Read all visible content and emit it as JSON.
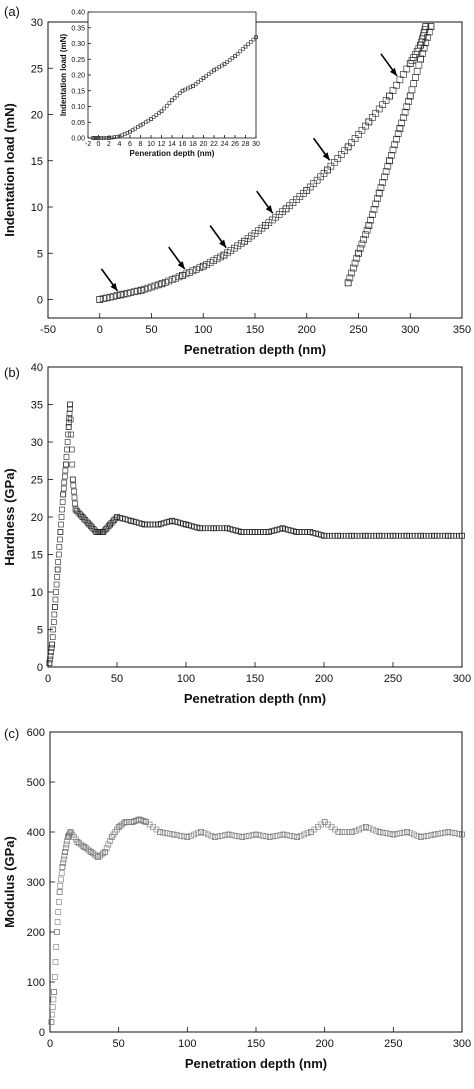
{
  "chart_data": [
    {
      "panel": "(a)",
      "type": "scatter",
      "xlabel": "Penetration depth (nm)",
      "ylabel": "Indentation load (mN)",
      "xlim": [
        -50,
        350
      ],
      "ylim": [
        -2,
        30
      ],
      "x_ticks": [
        -50,
        0,
        50,
        100,
        150,
        200,
        250,
        300,
        350
      ],
      "y_ticks": [
        0,
        5,
        10,
        15,
        20,
        25,
        30
      ],
      "marker": "open-square",
      "series": [
        {
          "segment": "loading",
          "x": [
            0,
            20,
            40,
            60,
            80,
            100,
            120,
            140,
            160,
            180,
            200,
            220,
            240,
            260,
            280,
            300,
            310,
            315
          ],
          "y": [
            0,
            0.5,
            1.0,
            1.7,
            2.6,
            3.6,
            4.8,
            6.3,
            8.0,
            9.8,
            11.8,
            14.0,
            16.5,
            19.2,
            22.0,
            25.5,
            27.5,
            29.5
          ]
        },
        {
          "segment": "unloading",
          "x": [
            320,
            310,
            300,
            290,
            280,
            270,
            260,
            250,
            240
          ],
          "y": [
            29.5,
            26.0,
            22.0,
            18.5,
            15.0,
            11.5,
            8.0,
            5.0,
            1.8
          ]
        }
      ],
      "arrows_at_x": [
        20,
        85,
        125,
        170,
        225,
        290
      ],
      "inset": {
        "xlabel": "Peneration depth (nm)",
        "ylabel": "Indentation load (mN)",
        "xlim": [
          -2,
          30
        ],
        "ylim": [
          0,
          0.4
        ],
        "x_ticks": [
          -2,
          0,
          2,
          4,
          6,
          8,
          10,
          12,
          14,
          16,
          18,
          20,
          22,
          24,
          26,
          28,
          30
        ],
        "y_ticks": [
          "0.00",
          "0.05",
          "0.10",
          "0.15",
          "0.20",
          "0.25",
          "0.30",
          "0.35",
          "0.40"
        ],
        "x": [
          -1,
          0,
          2,
          4,
          6,
          8,
          10,
          12,
          14,
          16,
          18,
          20,
          22,
          24,
          26,
          28,
          30
        ],
        "y": [
          0.0,
          0.0,
          0.0,
          0.005,
          0.02,
          0.04,
          0.06,
          0.085,
          0.12,
          0.15,
          0.165,
          0.19,
          0.215,
          0.235,
          0.26,
          0.29,
          0.32
        ]
      }
    },
    {
      "panel": "(b)",
      "type": "scatter",
      "xlabel": "Penetration depth (nm)",
      "ylabel": "Hardness (GPa)",
      "xlim": [
        0,
        300
      ],
      "ylim": [
        0,
        40
      ],
      "x_ticks": [
        0,
        50,
        100,
        150,
        200,
        250,
        300
      ],
      "y_ticks": [
        0,
        5,
        10,
        15,
        20,
        25,
        30,
        35,
        40
      ],
      "marker": "open-square",
      "x": [
        1,
        3,
        5,
        7,
        9,
        11,
        13,
        15,
        16,
        18,
        20,
        25,
        30,
        35,
        40,
        45,
        50,
        60,
        70,
        80,
        90,
        100,
        110,
        120,
        130,
        140,
        150,
        160,
        170,
        180,
        190,
        200,
        210,
        220,
        230,
        240,
        250,
        260,
        270,
        280,
        290,
        300
      ],
      "y": [
        0.5,
        3,
        8,
        13,
        18,
        23,
        27,
        32,
        35,
        25,
        21,
        20,
        19,
        18,
        18,
        19,
        20,
        19.5,
        19,
        19,
        19.5,
        19,
        18.5,
        18.5,
        18.5,
        18,
        18,
        18,
        18.5,
        18,
        18,
        17.5,
        17.5,
        17.5,
        17.5,
        17.5,
        17.5,
        17.5,
        17.5,
        17.5,
        17.5,
        17.5
      ]
    },
    {
      "panel": "(c)",
      "type": "scatter",
      "xlabel": "Penetration depth (nm)",
      "ylabel": "Modulus (GPa)",
      "xlim": [
        0,
        300
      ],
      "ylim": [
        0,
        600
      ],
      "x_ticks": [
        0,
        50,
        100,
        150,
        200,
        250,
        300
      ],
      "y_ticks": [
        0,
        100,
        200,
        300,
        400,
        500,
        600
      ],
      "marker": "open-square",
      "x": [
        1,
        3,
        5,
        7,
        9,
        11,
        13,
        15,
        20,
        25,
        30,
        35,
        40,
        45,
        50,
        55,
        60,
        65,
        70,
        80,
        90,
        100,
        110,
        120,
        130,
        140,
        150,
        160,
        170,
        180,
        190,
        200,
        210,
        220,
        230,
        240,
        250,
        260,
        270,
        280,
        290,
        300
      ],
      "y": [
        20,
        80,
        200,
        280,
        330,
        360,
        390,
        400,
        380,
        370,
        360,
        350,
        360,
        390,
        410,
        420,
        420,
        425,
        420,
        400,
        395,
        390,
        400,
        390,
        395,
        390,
        395,
        390,
        395,
        390,
        400,
        420,
        400,
        400,
        410,
        400,
        395,
        400,
        390,
        395,
        400,
        395
      ]
    }
  ]
}
